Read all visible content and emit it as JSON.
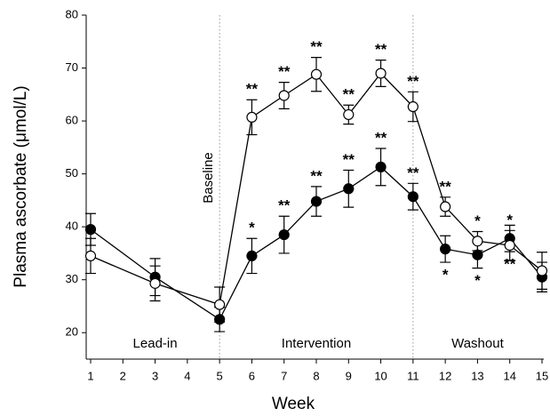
{
  "chart_data": {
    "type": "line",
    "ylabel": "Plasma ascorbate (μmol/L)",
    "xlabel": "Week",
    "xlim": [
      1,
      15
    ],
    "xticks": [
      1,
      2,
      3,
      4,
      5,
      6,
      7,
      8,
      9,
      10,
      11,
      12,
      13,
      14,
      15
    ],
    "ylim": [
      15,
      80
    ],
    "yticks": [
      20,
      30,
      40,
      50,
      60,
      70,
      80
    ],
    "x": [
      1,
      3,
      5,
      6,
      7,
      8,
      9,
      10,
      11,
      12,
      13,
      14,
      15
    ],
    "series": [
      {
        "color": "#000000",
        "marker_fill": "#000000",
        "values": [
          39.5,
          30.5,
          22.5,
          34.5,
          38.5,
          44.8,
          47.2,
          51.3,
          45.7,
          35.8,
          34.7,
          37.8,
          30.5
        ],
        "errors": [
          3,
          3.5,
          2.3,
          3.3,
          3.5,
          2.8,
          3.5,
          3.5,
          2.5,
          2.5,
          2.5,
          2.5,
          2.8
        ],
        "annotations": [
          null,
          null,
          null,
          "*",
          "**",
          "**",
          "**",
          "**",
          "**",
          "*",
          "*",
          "**",
          null
        ],
        "annotation_position": [
          "above",
          "above",
          "above",
          "above",
          "above",
          "above",
          "above",
          "above",
          "above",
          "below",
          "below",
          "below",
          "below"
        ]
      },
      {
        "color": "#000000",
        "marker_fill": "#ffffff",
        "values": [
          34.5,
          29.3,
          25.3,
          60.7,
          64.8,
          68.8,
          61.2,
          69.0,
          62.7,
          43.8,
          37.3,
          36.5,
          31.7
        ],
        "errors": [
          3.3,
          3.3,
          3.3,
          3.3,
          2.5,
          3.2,
          1.8,
          2.5,
          2.8,
          1.8,
          1.8,
          2.8,
          3.5
        ],
        "annotations": [
          null,
          null,
          null,
          "**",
          "**",
          "**",
          "**",
          "**",
          "**",
          "**",
          "*",
          "*",
          null
        ],
        "annotation_position": [
          "above",
          "above",
          "above",
          "above",
          "above",
          "above",
          "above",
          "above",
          "above",
          "above",
          "above",
          "above",
          "above"
        ]
      }
    ],
    "vlines": [
      5,
      11
    ],
    "vline_label": "Baseline",
    "regions": [
      {
        "label": "Lead-in",
        "from": 1,
        "to": 5
      },
      {
        "label": "Intervention",
        "from": 5,
        "to": 11
      },
      {
        "label": "Washout",
        "from": 11,
        "to": 15
      }
    ]
  }
}
